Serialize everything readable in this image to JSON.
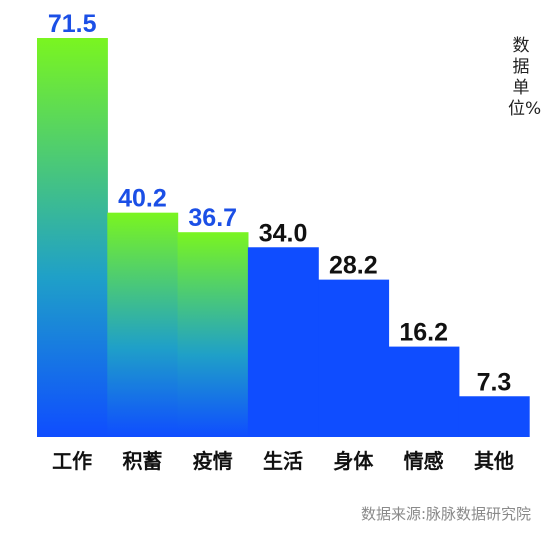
{
  "chart_data": {
    "type": "bar",
    "categories": [
      "工作",
      "积蓄",
      "疫情",
      "生活",
      "身体",
      "情感",
      "其他"
    ],
    "values": [
      71.5,
      40.2,
      36.7,
      34.0,
      28.2,
      16.2,
      7.3
    ],
    "value_labels": [
      "71.5",
      "40.2",
      "36.7",
      "34.0",
      "28.2",
      "16.2",
      "7.3"
    ],
    "ylim": [
      0,
      71.5
    ],
    "highlighted_count": 3,
    "unit_note": "数据单位%",
    "source": "数据来源:脉脉数据研究院",
    "grid": false,
    "legend": "none"
  },
  "colors": {
    "bar_blue": "#0f4dff",
    "gradient_top": "#7af520",
    "gradient_mid": "#1fa0c8",
    "gradient_bottom": "#0f4dff",
    "label_blue": "#1b4fe6",
    "label_black": "#111111",
    "category_text": "#111111",
    "source_text": "#8a8a8a"
  }
}
